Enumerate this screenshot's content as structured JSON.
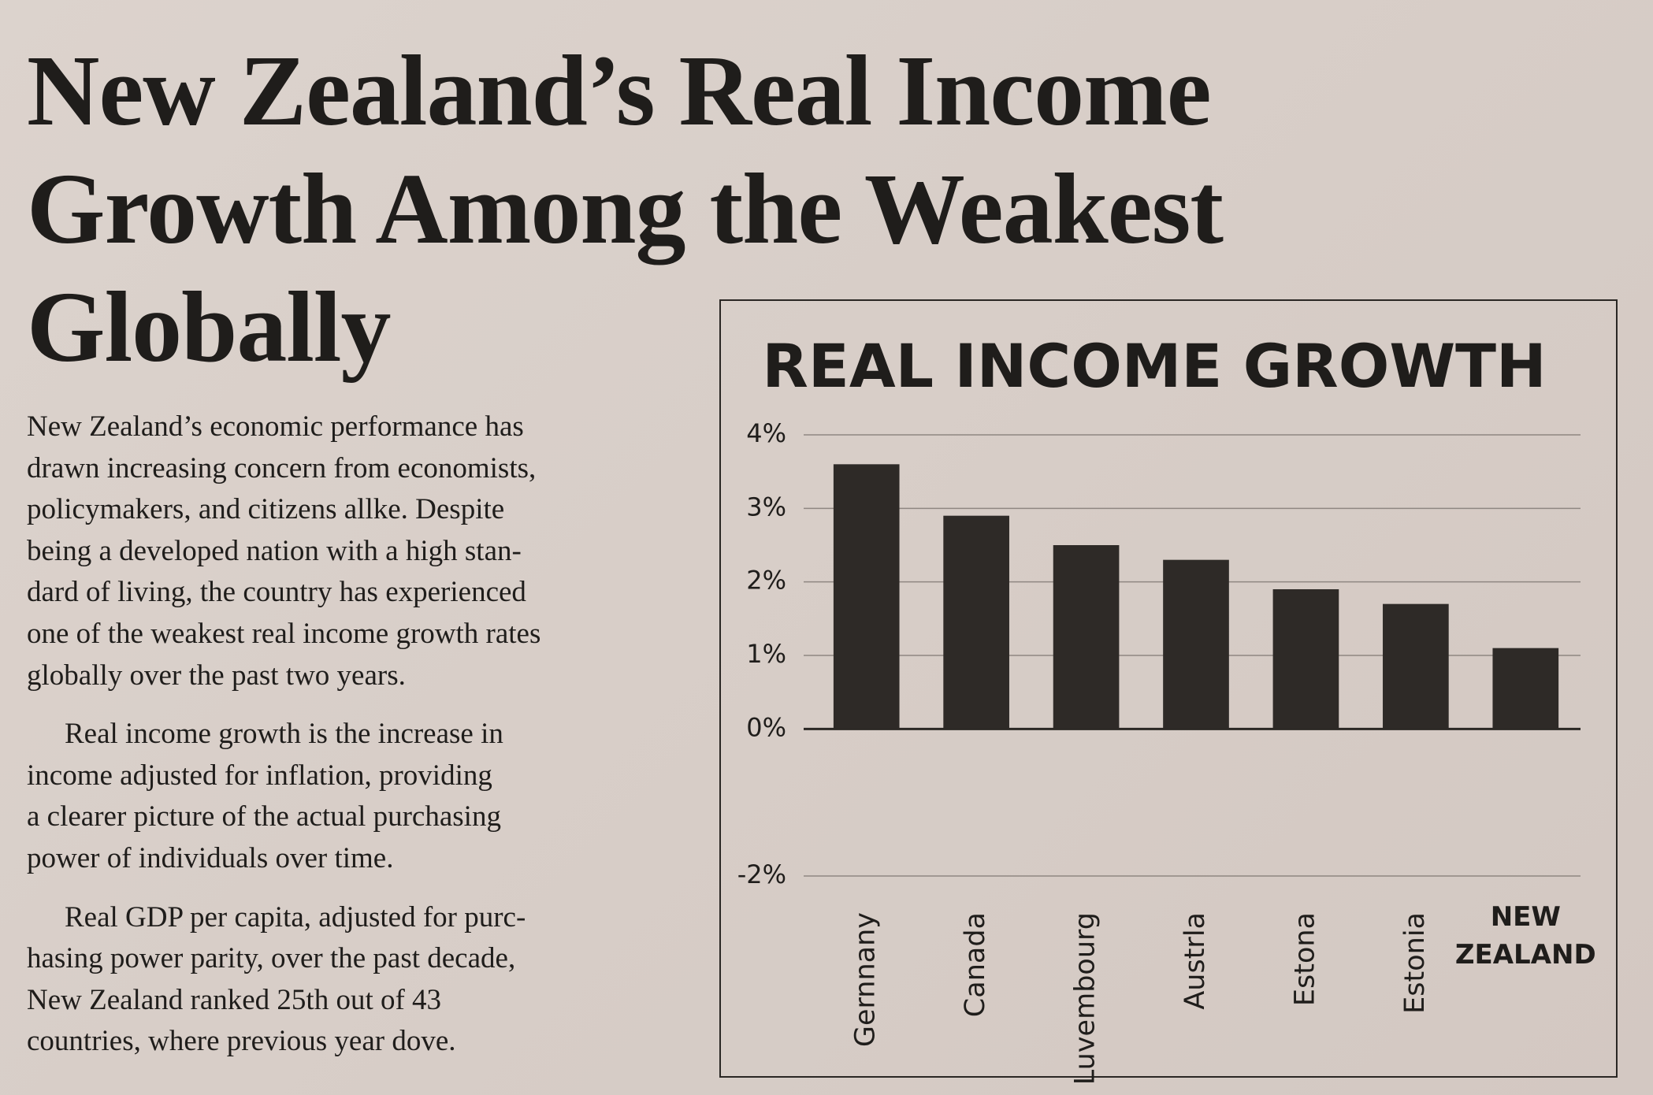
{
  "headline": {
    "lines": [
      "New Zealand’s Real Income",
      "Growth Among the Weakest",
      "Globally"
    ]
  },
  "article": {
    "paragraphs": [
      {
        "lines": [
          "New Zealand’s economic performance has",
          "drawn increasing concern from economists,",
          "policymakers, and citizens allke. Despite",
          "being a developed nation with a high stan-",
          "dard of living, the country has experienced",
          "one of the weakest real income growth rates",
          "globally over the past two years."
        ]
      },
      {
        "lines": [
          "Real income growth is the increase in",
          "income adjusted for inflation, providing",
          "a clearer picture of the actual purchasing",
          "power of individuals over time."
        ]
      },
      {
        "lines": [
          "Real GDP per capita, adjusted for purc-",
          "hasing power parity, over the past decade,",
          "New Zealand ranked 25th out of 43",
          "countries, where previous year dove."
        ]
      }
    ]
  },
  "chart_data": {
    "type": "bar",
    "title": "REAL INCOME GROWTH",
    "categories": [
      "Gernnany",
      "Canada",
      "Luvembourg",
      "Austrla",
      "Estona",
      "Estonia",
      "NEW ZEALAND"
    ],
    "values": [
      3.6,
      2.9,
      2.5,
      2.3,
      1.9,
      1.7,
      1.1
    ],
    "color": "#2e2a27",
    "ylim": [
      -2,
      4
    ],
    "yticks": [
      {
        "value": -2,
        "label": "-2%"
      },
      {
        "value": 0,
        "label": "0%"
      },
      {
        "value": 1,
        "label": "1%"
      },
      {
        "value": 2,
        "label": "2%"
      },
      {
        "value": 3,
        "label": "3%"
      },
      {
        "value": 4,
        "label": "4%"
      }
    ],
    "grid": true
  }
}
